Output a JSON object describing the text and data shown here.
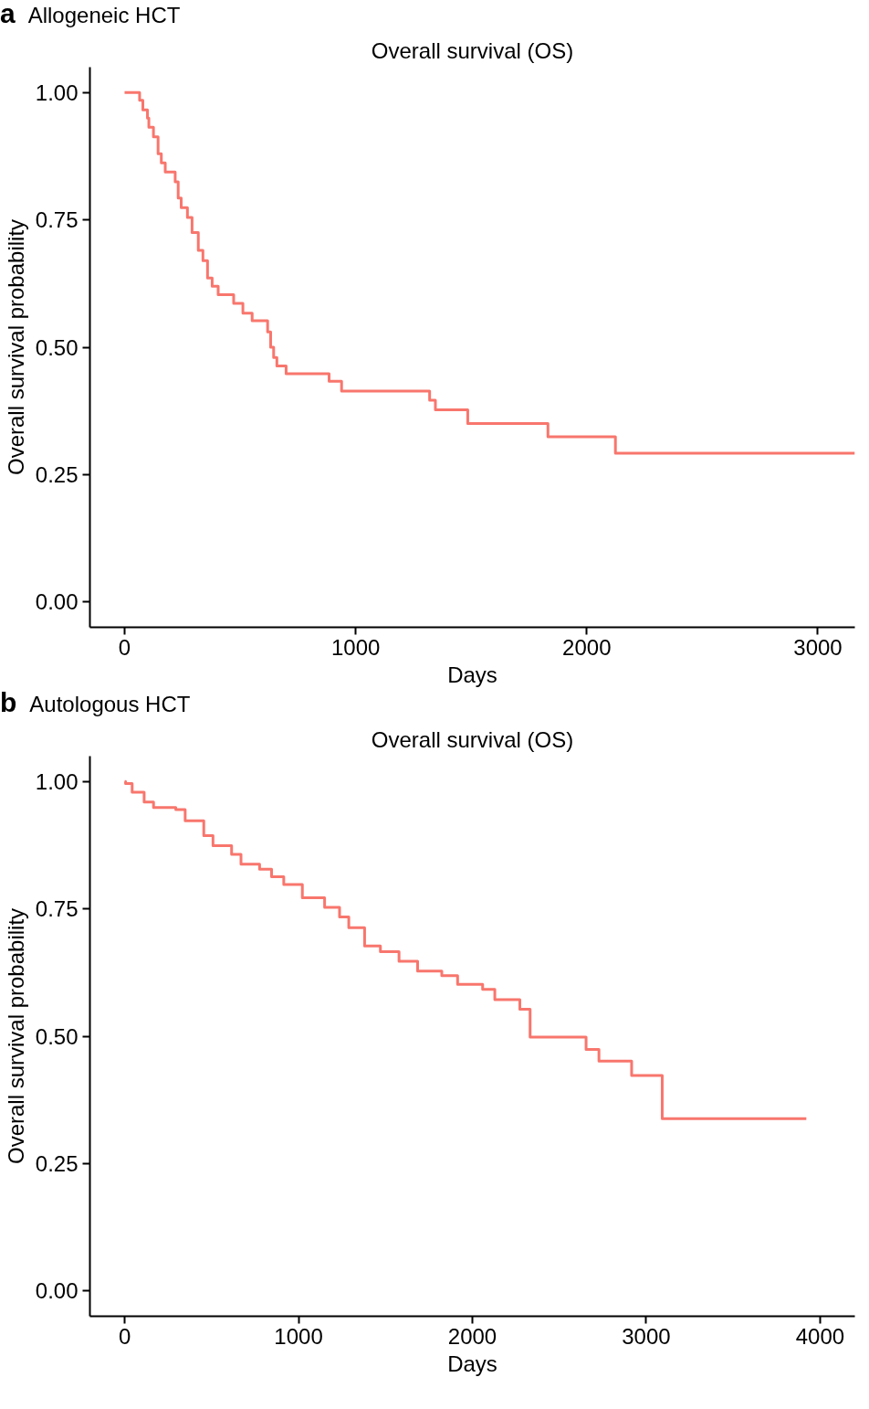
{
  "chart_data": [
    {
      "type": "step",
      "title": "Overall survival (OS)",
      "annotations": [
        "a",
        "Allogeneic HCT"
      ],
      "xlabel": "Days",
      "ylabel": "Overall survival probability",
      "series": [
        {
          "color": "#f8766d",
          "x": [
            0,
            65,
            79,
            99,
            105,
            125,
            145,
            159,
            176,
            219,
            232,
            245,
            272,
            292,
            319,
            339,
            359,
            379,
            405,
            472,
            512,
            552,
            619,
            632,
            645,
            659,
            699,
            885,
            939,
            1320,
            1345,
            1485,
            1832,
            2124,
            3160
          ],
          "values": [
            1.0,
            0.985,
            0.966,
            0.95,
            0.932,
            0.913,
            0.88,
            0.862,
            0.844,
            0.825,
            0.793,
            0.774,
            0.755,
            0.725,
            0.69,
            0.67,
            0.636,
            0.62,
            0.603,
            0.586,
            0.567,
            0.552,
            0.53,
            0.5,
            0.48,
            0.463,
            0.448,
            0.433,
            0.414,
            0.396,
            0.377,
            0.35,
            0.324,
            0.292,
            0.292
          ]
        }
      ],
      "xlim": [
        -150,
        3160
      ],
      "xticks": [
        0,
        1000,
        2000,
        3000
      ],
      "ylim": [
        -0.05,
        1.05
      ],
      "yticks": [
        {
          "value": 0,
          "label": "0.00"
        },
        {
          "value": 0.25,
          "label": "0.25"
        },
        {
          "value": 0.5,
          "label": "0.50"
        },
        {
          "value": 0.75,
          "label": "0.75"
        },
        {
          "value": 1,
          "label": "1.00"
        }
      ],
      "grid": false
    },
    {
      "type": "step",
      "title": "Overall survival (OS)",
      "annotations": [
        "b",
        "Autologous HCT"
      ],
      "xlabel": "Days",
      "ylabel": "Overall survival probability",
      "series": [
        {
          "color": "#f8766d",
          "x": [
            0,
            5,
            43,
            112,
            166,
            294,
            348,
            455,
            508,
            615,
            669,
            776,
            845,
            915,
            1022,
            1150,
            1236,
            1289,
            1380,
            1471,
            1578,
            1685,
            1824,
            1915,
            2059,
            2129,
            2273,
            2332,
            2654,
            2728,
            2916,
            3092,
            3921
          ],
          "values": [
            1.0,
            0.996,
            0.979,
            0.96,
            0.949,
            0.945,
            0.923,
            0.894,
            0.874,
            0.857,
            0.838,
            0.828,
            0.813,
            0.798,
            0.772,
            0.753,
            0.734,
            0.713,
            0.677,
            0.666,
            0.647,
            0.628,
            0.619,
            0.602,
            0.592,
            0.572,
            0.553,
            0.498,
            0.474,
            0.451,
            0.423,
            0.338,
            0.338
          ]
        }
      ],
      "xlim": [
        -200,
        4200
      ],
      "xticks": [
        0,
        1000,
        2000,
        3000,
        4000
      ],
      "ylim": [
        -0.05,
        1.05
      ],
      "yticks": [
        {
          "value": 0,
          "label": "0.00"
        },
        {
          "value": 0.25,
          "label": "0.25"
        },
        {
          "value": 0.5,
          "label": "0.50"
        },
        {
          "value": 0.75,
          "label": "0.75"
        },
        {
          "value": 1,
          "label": "1.00"
        }
      ],
      "grid": false
    }
  ]
}
